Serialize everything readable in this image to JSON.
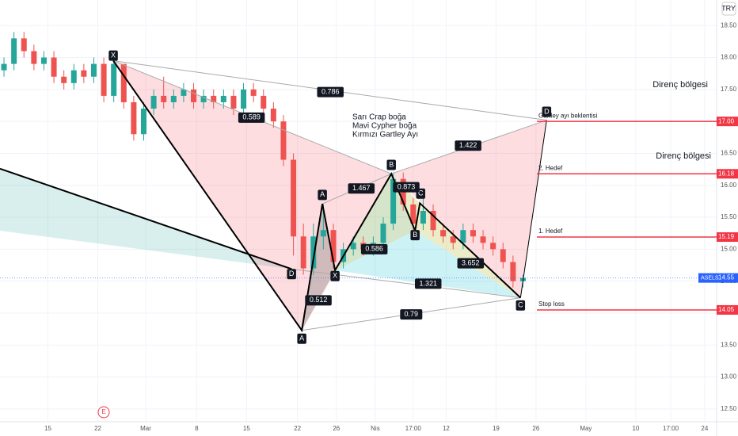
{
  "chart_data": {
    "type": "candlestick",
    "currency": "TRY",
    "up_color": "#26a69a",
    "down_color": "#ef5350",
    "xlim": [
      -0.4,
      71.4
    ],
    "ylim": [
      12.3,
      18.9
    ],
    "xticks": [
      {
        "value": 4.4,
        "label": "15"
      },
      {
        "value": 9.4,
        "label": "22"
      },
      {
        "value": 14.2,
        "label": "Mar"
      },
      {
        "value": 19.3,
        "label": "8"
      },
      {
        "value": 24.3,
        "label": "15"
      },
      {
        "value": 29.4,
        "label": "22"
      },
      {
        "value": 33.3,
        "label": "26"
      },
      {
        "value": 37.2,
        "label": "Nis"
      },
      {
        "value": 41,
        "label": "17:00"
      },
      {
        "value": 44.3,
        "label": "12"
      },
      {
        "value": 49.3,
        "label": "19"
      },
      {
        "value": 53.3,
        "label": "26"
      },
      {
        "value": 58.3,
        "label": "May"
      },
      {
        "value": 63.3,
        "label": "10"
      },
      {
        "value": 66.8,
        "label": "17:00"
      },
      {
        "value": 70.2,
        "label": "24"
      }
    ],
    "yticks": [
      {
        "value": 12.5,
        "label": "12.50"
      },
      {
        "value": 13,
        "label": "13.00"
      },
      {
        "value": 13.5,
        "label": "13.50"
      },
      {
        "value": 14,
        "label": "14.00"
      },
      {
        "value": 14.5,
        "label": "14.50"
      },
      {
        "value": 15,
        "label": "15.00"
      },
      {
        "value": 15.5,
        "label": "15.50"
      },
      {
        "value": 16,
        "label": "16.00"
      },
      {
        "value": 16.5,
        "label": "16.50"
      },
      {
        "value": 17,
        "label": "17.00"
      },
      {
        "value": 17.5,
        "label": "17.50"
      },
      {
        "value": 18,
        "label": "18.00"
      },
      {
        "value": 18.5,
        "label": "18.50"
      }
    ],
    "grid": true,
    "candles": [
      [
        17.8,
        18.0,
        17.7,
        17.9
      ],
      [
        17.9,
        18.4,
        17.8,
        18.3
      ],
      [
        18.3,
        18.4,
        18.0,
        18.1
      ],
      [
        18.1,
        18.2,
        17.8,
        17.9
      ],
      [
        17.9,
        18.1,
        17.8,
        18.0
      ],
      [
        18.0,
        18.1,
        17.6,
        17.7
      ],
      [
        17.7,
        17.8,
        17.5,
        17.6
      ],
      [
        17.6,
        17.9,
        17.5,
        17.8
      ],
      [
        17.8,
        17.9,
        17.6,
        17.7
      ],
      [
        17.7,
        18.0,
        17.6,
        17.9
      ],
      [
        17.9,
        18.0,
        17.3,
        17.4
      ],
      [
        17.4,
        18.0,
        17.3,
        17.9
      ],
      [
        17.9,
        17.9,
        17.2,
        17.3
      ],
      [
        17.3,
        17.4,
        16.7,
        16.8
      ],
      [
        16.8,
        17.3,
        16.7,
        17.2
      ],
      [
        17.2,
        17.5,
        17.1,
        17.4
      ],
      [
        17.4,
        17.7,
        17.2,
        17.3
      ],
      [
        17.3,
        17.5,
        17.2,
        17.4
      ],
      [
        17.4,
        17.6,
        17.3,
        17.5
      ],
      [
        17.5,
        17.6,
        17.2,
        17.3
      ],
      [
        17.3,
        17.5,
        17.2,
        17.4
      ],
      [
        17.4,
        17.5,
        17.2,
        17.3
      ],
      [
        17.3,
        17.5,
        17.2,
        17.4
      ],
      [
        17.4,
        17.5,
        17.1,
        17.2
      ],
      [
        17.2,
        17.6,
        17.1,
        17.5
      ],
      [
        17.5,
        17.6,
        17.3,
        17.4
      ],
      [
        17.4,
        17.5,
        17.1,
        17.2
      ],
      [
        17.2,
        17.3,
        16.9,
        17.0
      ],
      [
        17.0,
        17.1,
        16.3,
        16.4
      ],
      [
        16.4,
        16.5,
        14.9,
        15.2
      ],
      [
        15.2,
        15.4,
        14.6,
        14.7
      ],
      [
        14.7,
        15.4,
        14.6,
        15.2
      ],
      [
        15.2,
        15.7,
        15.0,
        15.3
      ],
      [
        15.3,
        15.4,
        14.7,
        14.8
      ],
      [
        14.8,
        15.1,
        14.7,
        15.0
      ],
      [
        15.0,
        15.2,
        14.9,
        15.1
      ],
      [
        15.1,
        15.2,
        14.9,
        15.0
      ],
      [
        15.0,
        15.2,
        14.9,
        15.1
      ],
      [
        15.1,
        15.5,
        15.0,
        15.4
      ],
      [
        15.4,
        16.2,
        15.3,
        16.1
      ],
      [
        16.1,
        16.2,
        15.6,
        15.7
      ],
      [
        15.7,
        15.8,
        15.3,
        15.4
      ],
      [
        15.4,
        15.8,
        15.3,
        15.6
      ],
      [
        15.6,
        15.7,
        15.2,
        15.3
      ],
      [
        15.3,
        15.4,
        15.1,
        15.2
      ],
      [
        15.2,
        15.3,
        15.0,
        15.1
      ],
      [
        15.1,
        15.4,
        15.0,
        15.3
      ],
      [
        15.3,
        15.4,
        15.1,
        15.2
      ],
      [
        15.2,
        15.3,
        15.0,
        15.1
      ],
      [
        15.1,
        15.2,
        14.9,
        15.0
      ],
      [
        15.0,
        15.1,
        14.7,
        14.8
      ],
      [
        14.8,
        14.9,
        14.4,
        14.5
      ],
      [
        14.5,
        14.6,
        14.4,
        14.55
      ]
    ],
    "drawings": [
      {
        "fill": "rgba(38,166,154,0.18)",
        "points": [
          [
            -0.4,
            16.26
          ],
          [
            28.81,
            14.69
          ],
          [
            -0.4,
            15.29
          ]
        ]
      },
      {
        "fill": "rgba(242,54,69,0.17)",
        "points": [
          [
            10.95,
            17.95
          ],
          [
            29.84,
            13.73
          ],
          [
            38.81,
            16.18
          ]
        ]
      },
      {
        "fill": "rgba(242,54,69,0.17)",
        "points": [
          [
            38.81,
            16.18
          ],
          [
            51.75,
            14.24
          ],
          [
            54.37,
            17.02
          ]
        ]
      },
      {
        "fill": "rgba(120,120,120,0.35)",
        "points": [
          [
            29.84,
            13.73
          ],
          [
            31.9,
            15.71
          ],
          [
            33.17,
            14.67
          ]
        ]
      },
      {
        "fill": "rgba(0,188,212,0.2)",
        "points": [
          [
            33.17,
            14.67
          ],
          [
            41.19,
            15.29
          ],
          [
            51.75,
            14.24
          ]
        ]
      },
      {
        "fill": "rgba(120,170,80,0.3)",
        "points": [
          [
            33.17,
            14.67
          ],
          [
            38.81,
            16.18
          ],
          [
            41.19,
            15.29
          ]
        ]
      },
      {
        "fill": "rgba(200,200,100,0.35)",
        "points": [
          [
            38.81,
            16.18
          ],
          [
            41.19,
            15.29
          ],
          [
            51.75,
            14.24
          ],
          [
            41.67,
            15.72
          ]
        ]
      }
    ],
    "lines": [
      {
        "color": "#aaaaaa",
        "width": 1,
        "points": [
          [
            10.95,
            17.95
          ],
          [
            54.37,
            17.02
          ]
        ]
      },
      {
        "color": "#aaaaaa",
        "width": 1,
        "points": [
          [
            10.95,
            17.95
          ],
          [
            38.81,
            16.18
          ],
          [
            54.37,
            17.02
          ]
        ]
      },
      {
        "color": "#aaaaaa",
        "width": 1,
        "points": [
          [
            29.84,
            13.73
          ],
          [
            51.75,
            14.24
          ]
        ]
      },
      {
        "color": "#aaaaaa",
        "width": 1,
        "points": [
          [
            31.9,
            15.71
          ],
          [
            38.81,
            16.18
          ]
        ]
      },
      {
        "color": "#aaaaaa",
        "width": 1,
        "points": [
          [
            28.81,
            14.69
          ],
          [
            51.75,
            14.24
          ]
        ]
      },
      {
        "color": "#000000",
        "width": 2,
        "points": [
          [
            -0.4,
            16.26
          ],
          [
            28.81,
            14.69
          ]
        ]
      },
      {
        "color": "#000000",
        "width": 2,
        "points": [
          [
            10.95,
            17.95
          ],
          [
            29.84,
            13.73
          ],
          [
            31.9,
            15.71
          ],
          [
            33.17,
            14.67
          ],
          [
            38.81,
            16.18
          ],
          [
            41.19,
            15.29
          ],
          [
            41.67,
            15.72
          ],
          [
            51.75,
            14.24
          ]
        ]
      },
      {
        "color": "#000000",
        "width": 1,
        "points": [
          [
            51.75,
            14.24
          ],
          [
            54.37,
            17.02
          ]
        ]
      }
    ],
    "point_labels": [
      {
        "text": "X",
        "x": 10.95,
        "y": 18.03
      },
      {
        "text": "A",
        "x": 31.9,
        "y": 15.85
      },
      {
        "text": "A",
        "x": 29.84,
        "y": 13.6
      },
      {
        "text": "B",
        "x": 38.81,
        "y": 16.32
      },
      {
        "text": "B",
        "x": 41.19,
        "y": 15.22
      },
      {
        "text": "C",
        "x": 41.75,
        "y": 15.87
      },
      {
        "text": "C",
        "x": 51.75,
        "y": 14.12
      },
      {
        "text": "D",
        "x": 54.37,
        "y": 17.15
      },
      {
        "text": "D",
        "x": 28.81,
        "y": 14.61
      },
      {
        "text": "X",
        "x": 33.17,
        "y": 14.58
      }
    ],
    "ratio_labels": [
      {
        "text": "0.786",
        "x": 32.7,
        "y": 17.46
      },
      {
        "text": "0.589",
        "x": 24.8,
        "y": 17.06
      },
      {
        "text": "1.422",
        "x": 46.5,
        "y": 16.62
      },
      {
        "text": "1.467",
        "x": 35.8,
        "y": 15.95
      },
      {
        "text": "0.873",
        "x": 40.3,
        "y": 15.97
      },
      {
        "text": "0.586",
        "x": 37.1,
        "y": 15.0
      },
      {
        "text": "0.512",
        "x": 31.5,
        "y": 14.2
      },
      {
        "text": "1.321",
        "x": 42.5,
        "y": 14.46
      },
      {
        "text": "3.652",
        "x": 46.75,
        "y": 14.78
      },
      {
        "text": "0.79",
        "x": 40.8,
        "y": 13.98
      }
    ],
    "levels": [
      {
        "price": {
          "value": 17,
          "label": "17.00"
        },
        "text": "Gartley ayı beklentisi"
      },
      {
        "price": {
          "value": 16.18,
          "label": "16.18"
        },
        "text": "2. Hedef"
      },
      {
        "price": {
          "value": 15.19,
          "label": "15.19"
        },
        "text": "1. Hedef"
      },
      {
        "price": {
          "value": 14.05,
          "label": "14.05"
        },
        "text": "Stop loss"
      }
    ],
    "level_color": "#f23645",
    "last": {
      "symbol": "ASELS",
      "price": {
        "value": 14.55,
        "label": "14.55"
      },
      "color": "#2962ff"
    },
    "resistance": [
      "Direnç bölgesi",
      "Direnç bölgesi"
    ],
    "note": [
      "Sarı Crap boğa",
      "Mavi Cypher boğa",
      "Kırmızı Gartley Ayı"
    ],
    "event": "E"
  }
}
